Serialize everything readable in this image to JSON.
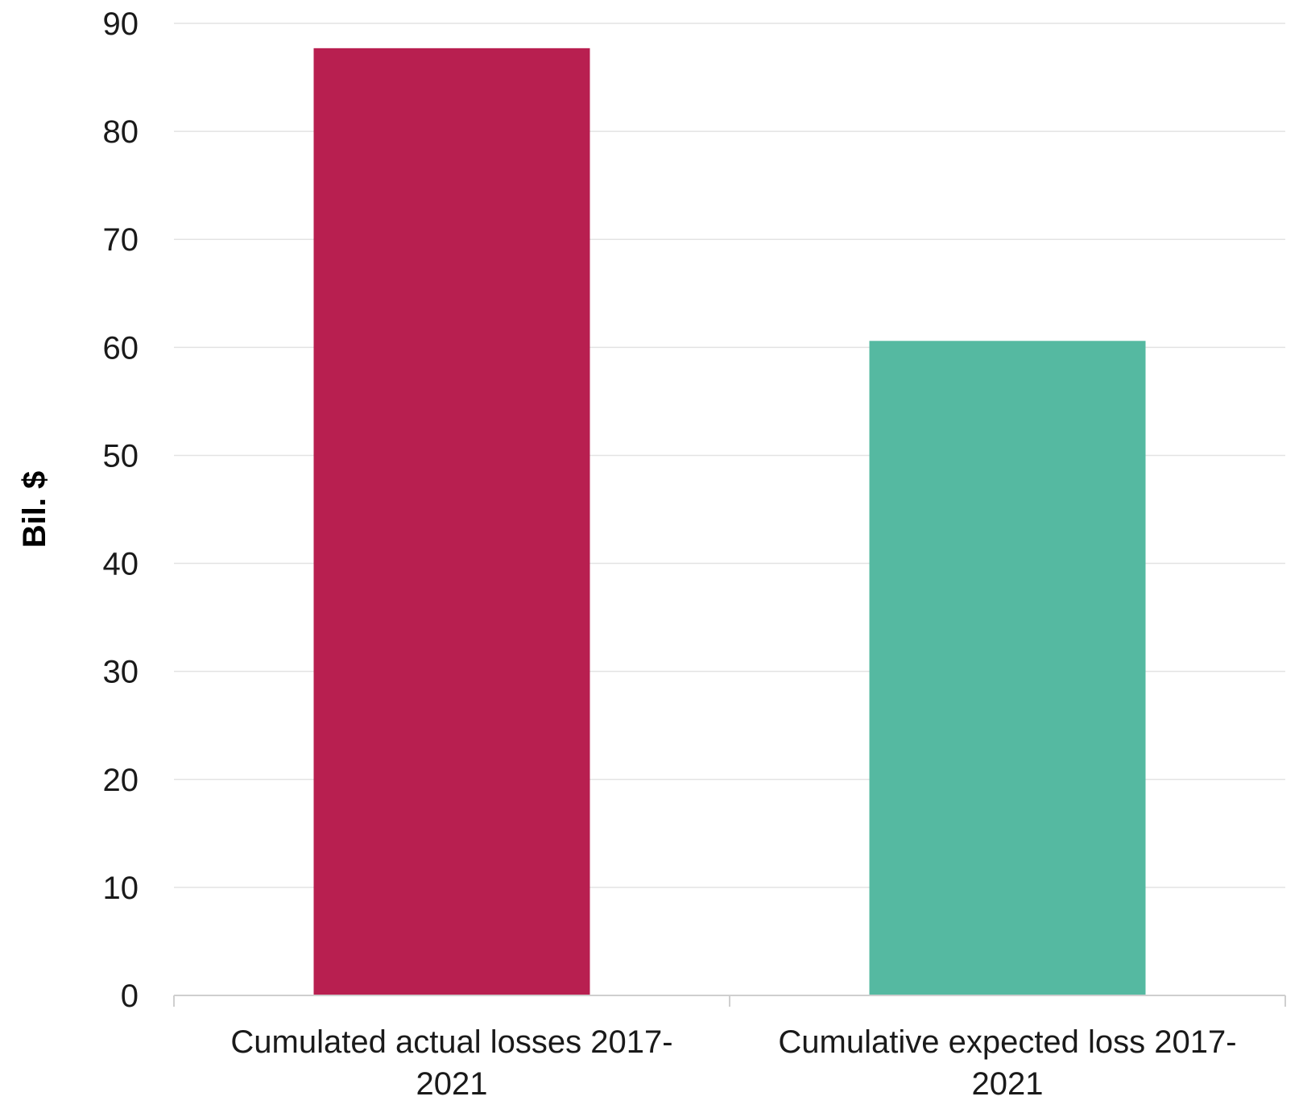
{
  "chart_data": {
    "type": "bar",
    "categories": [
      [
        "Cumulated actual losses 2017-",
        "2021"
      ],
      [
        "Cumulative expected loss 2017-",
        "2021"
      ]
    ],
    "values": [
      87.7,
      60.6
    ],
    "colors": [
      "#b81f50",
      "#55b9a1"
    ],
    "ylabel": "Bil. $",
    "xlabel": "",
    "ylim": [
      0,
      90
    ],
    "yticks": [
      0,
      10,
      20,
      30,
      40,
      50,
      60,
      70,
      80,
      90
    ],
    "grid": true,
    "legend": "none"
  }
}
